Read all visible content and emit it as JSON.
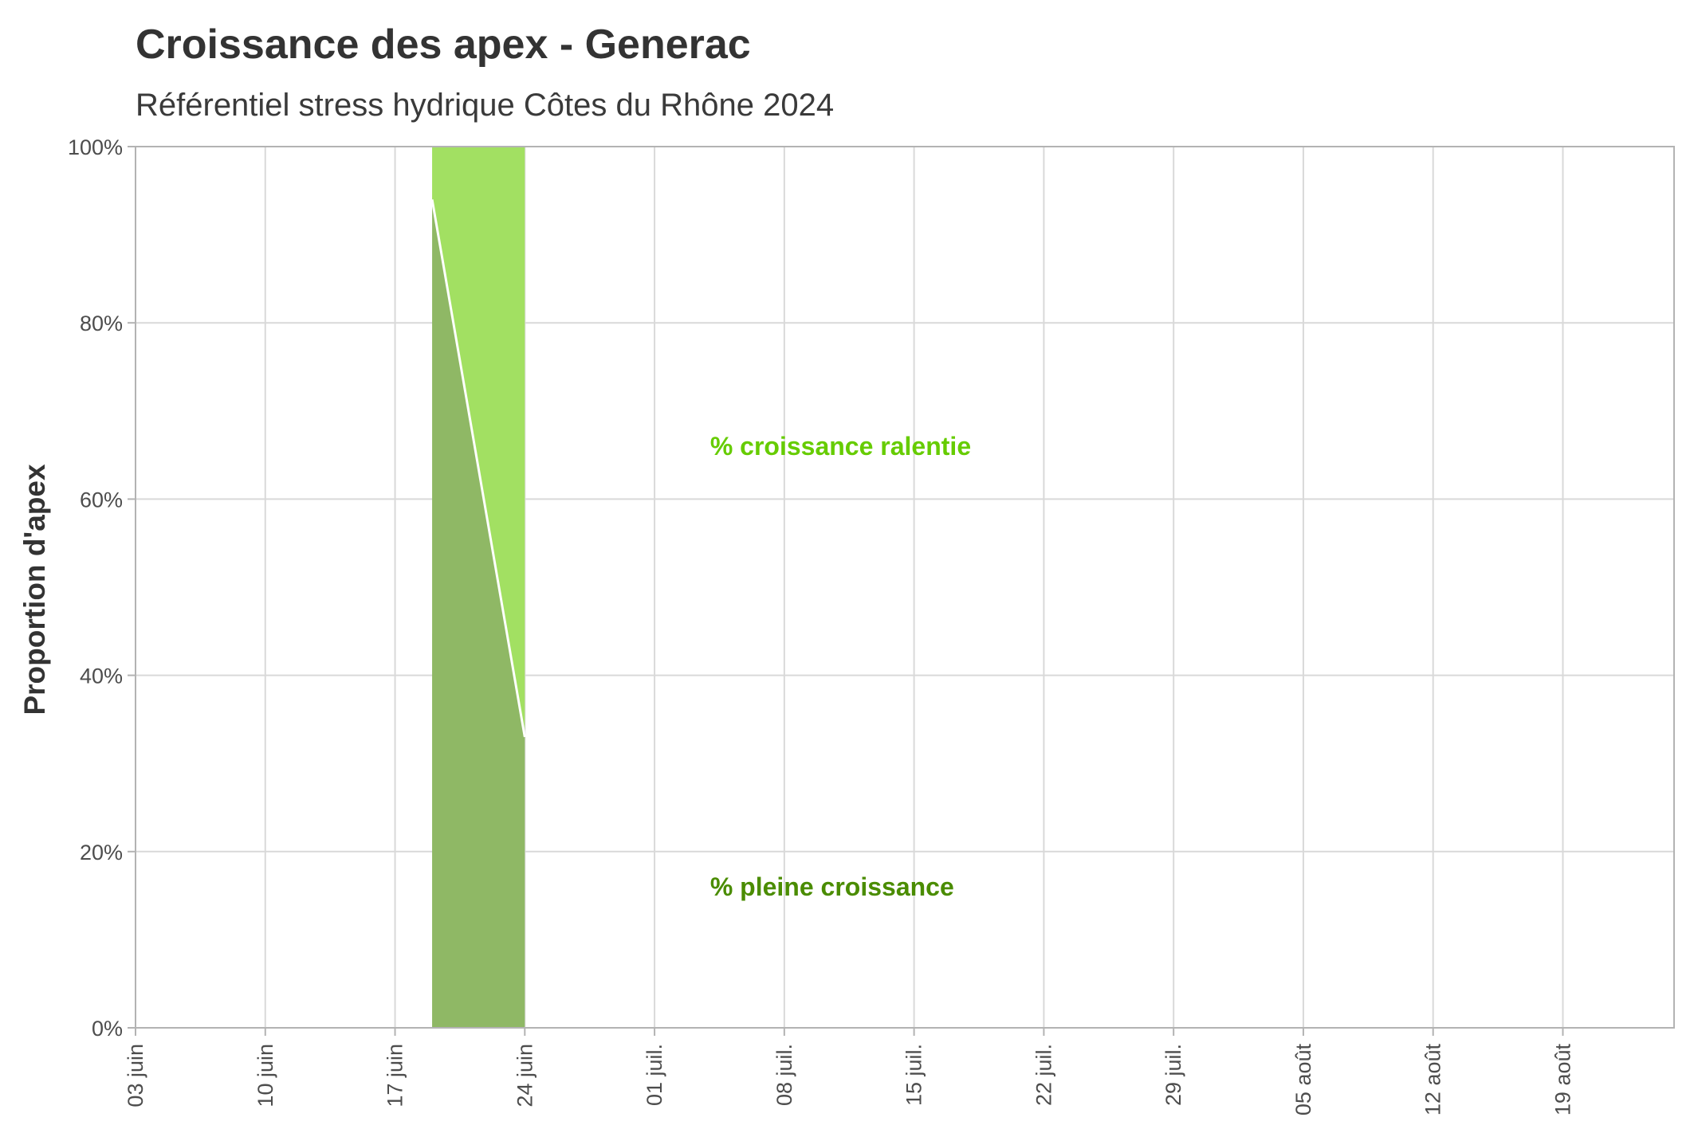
{
  "title": "Croissance des apex - Generac",
  "subtitle": "Référentiel stress hydrique Côtes du Rhône 2024",
  "chart_data": {
    "type": "area",
    "title": "Croissance des apex - Generac",
    "subtitle": "Référentiel stress hydrique Côtes du Rhône 2024",
    "xlabel": "",
    "ylabel": "Proportion d'apex",
    "x": [
      "2024-06-19",
      "2024-06-24"
    ],
    "series": [
      {
        "name": "% pleine croissance",
        "values": [
          94,
          33
        ],
        "color": "#8fb865"
      },
      {
        "name": "% croissance ralentie",
        "values": [
          6,
          67
        ],
        "color": "#a2e062"
      }
    ],
    "xlim": [
      "2024-06-03",
      "2024-08-25"
    ],
    "ylim": [
      0,
      100
    ],
    "x_ticks": [
      "03 juin",
      "10 juin",
      "17 juin",
      "24 juin",
      "01 juil.",
      "08 juil.",
      "15 juil.",
      "22 juil.",
      "29 juil.",
      "05 août",
      "12 août",
      "19 août"
    ],
    "x_tick_dates": [
      "2024-06-03",
      "2024-06-10",
      "2024-06-17",
      "2024-06-24",
      "2024-07-01",
      "2024-07-08",
      "2024-07-15",
      "2024-07-22",
      "2024-07-29",
      "2024-08-05",
      "2024-08-12",
      "2024-08-19"
    ],
    "y_ticks": [
      "0%",
      "20%",
      "40%",
      "60%",
      "80%",
      "100%"
    ],
    "y_tick_values": [
      0,
      20,
      40,
      60,
      80,
      100
    ],
    "annotations": [
      {
        "text": "%  croissance ralentie",
        "x": "2024-07-04",
        "y": 66,
        "color": "#66cc00"
      },
      {
        "text": "% pleine croissance",
        "x": "2024-07-04",
        "y": 16,
        "color": "#4a8c00"
      }
    ],
    "boundary_line_color": "#ffffff",
    "grid": true,
    "legend": "none"
  }
}
